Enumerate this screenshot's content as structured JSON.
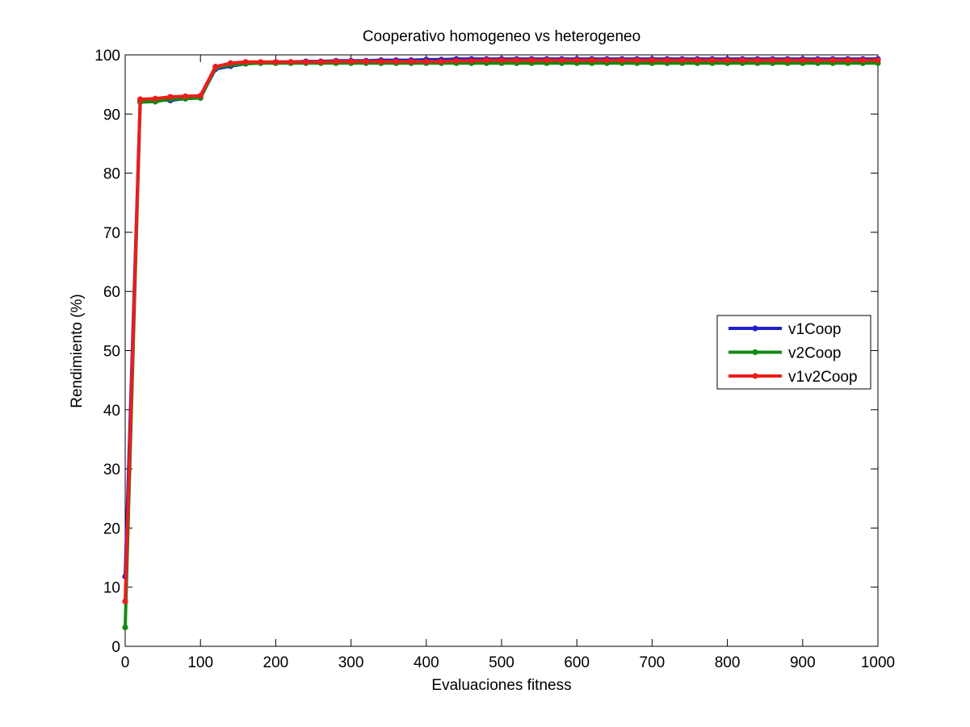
{
  "chart_data": {
    "type": "line",
    "title": "Cooperativo homogeneo vs heterogeneo",
    "xlabel": "Evaluaciones fitness",
    "ylabel": "Rendimiento (%)",
    "xlim": [
      0,
      1000
    ],
    "ylim": [
      0,
      100
    ],
    "xticks": [
      0,
      100,
      200,
      300,
      400,
      500,
      600,
      700,
      800,
      900,
      1000
    ],
    "yticks": [
      0,
      10,
      20,
      30,
      40,
      50,
      60,
      70,
      80,
      90,
      100
    ],
    "grid": false,
    "legend_position": "right",
    "x": [
      0,
      20,
      40,
      60,
      80,
      100,
      120,
      140,
      160,
      180,
      200,
      220,
      240,
      260,
      280,
      300,
      320,
      340,
      360,
      380,
      400,
      420,
      440,
      460,
      480,
      500,
      520,
      540,
      560,
      580,
      600,
      620,
      640,
      660,
      680,
      700,
      720,
      740,
      760,
      780,
      800,
      820,
      840,
      860,
      880,
      900,
      920,
      940,
      960,
      980,
      1000
    ],
    "series": [
      {
        "name": "v1Coop",
        "color": "#1f1fcc",
        "values": [
          11.8,
          92.2,
          92.4,
          92.3,
          92.6,
          92.8,
          97.6,
          98.1,
          98.5,
          98.7,
          98.8,
          98.8,
          98.9,
          98.9,
          99.0,
          99.0,
          99.0,
          99.1,
          99.1,
          99.1,
          99.2,
          99.2,
          99.3,
          99.3,
          99.3,
          99.3,
          99.3,
          99.3,
          99.3,
          99.3,
          99.3,
          99.3,
          99.3,
          99.3,
          99.3,
          99.3,
          99.3,
          99.3,
          99.3,
          99.3,
          99.3,
          99.3,
          99.3,
          99.3,
          99.3,
          99.3,
          99.3,
          99.3,
          99.3,
          99.3,
          99.3
        ]
      },
      {
        "name": "v2Coop",
        "color": "#138a13",
        "values": [
          3.2,
          92.0,
          92.1,
          92.5,
          92.6,
          92.7,
          97.8,
          98.3,
          98.5,
          98.6,
          98.6,
          98.6,
          98.6,
          98.6,
          98.6,
          98.6,
          98.6,
          98.6,
          98.6,
          98.6,
          98.6,
          98.6,
          98.6,
          98.6,
          98.6,
          98.6,
          98.6,
          98.6,
          98.6,
          98.6,
          98.6,
          98.6,
          98.6,
          98.6,
          98.6,
          98.6,
          98.6,
          98.6,
          98.6,
          98.6,
          98.6,
          98.6,
          98.6,
          98.6,
          98.6,
          98.6,
          98.6,
          98.6,
          98.6,
          98.6,
          98.6
        ]
      },
      {
        "name": "v1v2Coop",
        "color": "#ee1c1c",
        "values": [
          7.6,
          92.5,
          92.6,
          92.9,
          93.0,
          93.1,
          98.0,
          98.6,
          98.8,
          98.8,
          98.8,
          98.8,
          98.8,
          98.8,
          98.9,
          98.9,
          98.9,
          98.9,
          98.9,
          98.9,
          98.9,
          98.9,
          99.0,
          99.0,
          99.1,
          99.1,
          99.1,
          99.1,
          99.1,
          99.1,
          99.1,
          99.1,
          99.1,
          99.1,
          99.1,
          99.1,
          99.1,
          99.1,
          99.1,
          99.1,
          99.1,
          99.1,
          99.1,
          99.1,
          99.1,
          99.1,
          99.1,
          99.1,
          99.1,
          99.1,
          99.1
        ]
      }
    ]
  }
}
